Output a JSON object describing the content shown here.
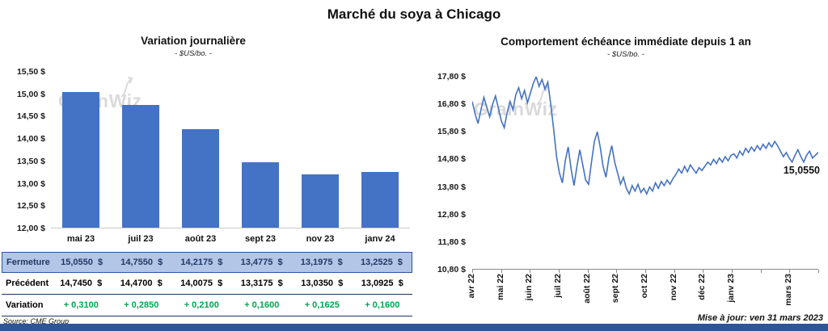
{
  "page": {
    "title": "Marché du soya à Chicago",
    "source_note": "Source: CME Group",
    "update_note": "Mise à jour: ven 31 mars 2023",
    "watermark": "GrainWiz"
  },
  "colors": {
    "bar-blue": "#4472C4",
    "line-blue": "#4472C4",
    "variation-green": "#00A550",
    "fermeture-bg": "#B4C6E7",
    "fermeture-border": "#2E5597",
    "fermeture-text": "#1F3864",
    "strip-navy": "#2E5597"
  },
  "table": {
    "rows": [
      {
        "key": "fermeture",
        "label": "Fermeture",
        "values": [
          "15,0550  $",
          "14,7550  $",
          "14,2175  $",
          "13,4775  $",
          "13,1975  $",
          "13,2525  $"
        ]
      },
      {
        "key": "precedent",
        "label": "Précédent",
        "values": [
          "14,7450  $",
          "14,4700  $",
          "14,0075  $",
          "13,3175  $",
          "13,0350  $",
          "13,0925  $"
        ]
      },
      {
        "key": "variation",
        "label": "Variation",
        "values": [
          "+ 0,3100",
          "+ 0,2850",
          "+ 0,2100",
          "+ 0,1600",
          "+ 0,1625",
          "+ 0,1600"
        ]
      }
    ]
  },
  "chart_data": [
    {
      "type": "bar",
      "title": "Variation  journalière",
      "subtitle": "- $US/bo. -",
      "categories": [
        "mai 23",
        "juil 23",
        "août 23",
        "sept 23",
        "nov 23",
        "janv 24"
      ],
      "values": [
        15.055,
        14.755,
        14.2175,
        13.4775,
        13.1975,
        13.2525
      ],
      "ylim": [
        12.0,
        15.5
      ],
      "y_ticks": [
        "15,50 $",
        "15,00 $",
        "14,50 $",
        "14,00 $",
        "13,50 $",
        "13,00 $",
        "12,50 $",
        "12,00 $"
      ],
      "grid": false,
      "legend": false
    },
    {
      "type": "line",
      "title": "Comportement  échéance  immédiate  depuis 1 an",
      "subtitle": "- $US/bo. -",
      "ylim": [
        10.8,
        17.8
      ],
      "y_ticks": [
        "17,80 $",
        "16,80 $",
        "15,80 $",
        "14,80 $",
        "13,80 $",
        "12,80 $",
        "11,80 $",
        "10,80 $"
      ],
      "x_labels": [
        "avr 22",
        "mai 22",
        "juin 22",
        "juil 22",
        "août 22",
        "sept 22",
        "oct 22",
        "nov 22",
        "déc 22",
        "janv 23",
        "mars 23"
      ],
      "x_label_month_positions": [
        0,
        1,
        2,
        3,
        4,
        5,
        6,
        7,
        8,
        9,
        11
      ],
      "months_span": 12,
      "annotation": "15,0550",
      "grid": false,
      "legend": false,
      "values": [
        16.9,
        16.45,
        16.1,
        16.6,
        17.05,
        16.7,
        16.35,
        16.8,
        17.1,
        16.65,
        16.2,
        15.95,
        16.5,
        16.9,
        16.6,
        17.15,
        17.4,
        17.0,
        17.3,
        16.85,
        17.2,
        17.55,
        17.8,
        17.45,
        17.7,
        17.35,
        17.6,
        16.8,
        15.9,
        14.9,
        14.3,
        13.95,
        14.75,
        15.25,
        14.45,
        13.85,
        14.55,
        15.15,
        14.6,
        14.05,
        13.9,
        14.7,
        15.45,
        15.8,
        15.25,
        14.55,
        14.15,
        14.85,
        15.3,
        14.7,
        14.3,
        13.9,
        14.15,
        13.75,
        13.55,
        13.85,
        13.65,
        13.9,
        13.6,
        13.75,
        13.55,
        13.8,
        13.65,
        13.95,
        13.75,
        14.0,
        13.85,
        14.05,
        13.9,
        14.1,
        14.25,
        14.45,
        14.3,
        14.55,
        14.35,
        14.6,
        14.45,
        14.3,
        14.5,
        14.4,
        14.55,
        14.7,
        14.6,
        14.8,
        14.65,
        14.85,
        14.7,
        14.9,
        14.75,
        14.95,
        15.0,
        14.85,
        15.1,
        14.95,
        15.2,
        15.05,
        15.25,
        15.1,
        15.3,
        15.15,
        15.35,
        15.2,
        15.4,
        15.25,
        15.45,
        15.3,
        15.1,
        14.9,
        15.05,
        14.85,
        14.7,
        14.95,
        15.15,
        14.9,
        14.7,
        14.95,
        15.1,
        14.85,
        14.95,
        15.055
      ]
    }
  ]
}
